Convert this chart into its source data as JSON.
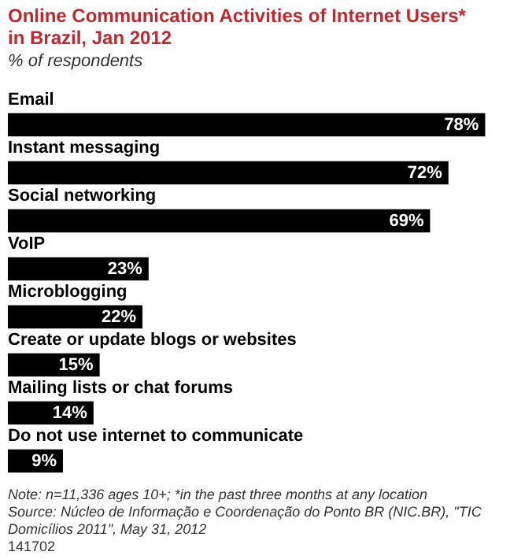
{
  "chart_data": {
    "type": "bar",
    "orientation": "horizontal",
    "title": "Online Communication Activities of Internet Users* in Brazil, Jan 2012",
    "subtitle": "% of respondents",
    "categories": [
      "Email",
      "Instant messaging",
      "Social networking",
      "VoIP",
      "Microblogging",
      "Create or update blogs or websites",
      "Mailing lists or chat forums",
      "Do not use internet to communicate"
    ],
    "values": [
      78,
      72,
      69,
      23,
      22,
      15,
      14,
      9
    ],
    "value_labels": [
      "78%",
      "72%",
      "69%",
      "23%",
      "22%",
      "15%",
      "14%",
      "9%"
    ],
    "color": "#000000",
    "tick_labels": false,
    "annotations": [
      "Note: n=11,336 ages 10+; *in the past three months at any location",
      "Source: Núcleo de Informação e Coordenação do Ponto BR (NIC.BR), \"TIC Domicílios 2011\", May 31, 2012",
      "141702"
    ]
  }
}
